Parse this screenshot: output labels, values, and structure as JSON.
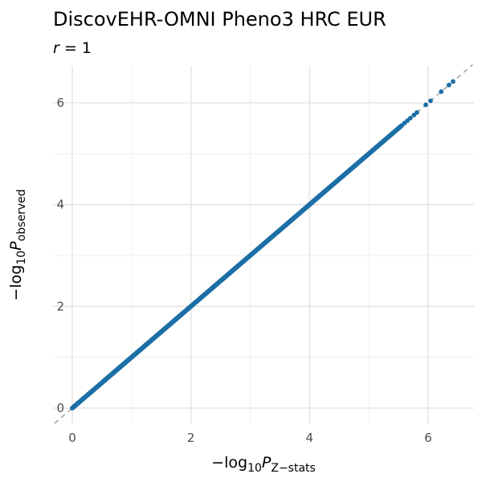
{
  "chart_data": {
    "type": "scatter",
    "title": "DiscovEHR-OMNI Pheno3 HRC EUR",
    "subtitle": {
      "italic": "r",
      "rest": " = 1"
    },
    "xlabel": {
      "prefix": "−log",
      "base": "10",
      "var": "P",
      "sub": "Z−stats"
    },
    "ylabel": {
      "prefix": "−log",
      "base": "10",
      "var": "P",
      "sub": "observed"
    },
    "xlim": [
      -0.3,
      6.75
    ],
    "ylim": [
      -0.3,
      6.75
    ],
    "x_ticks": [
      0,
      2,
      4,
      6
    ],
    "y_ticks": [
      0,
      2,
      4,
      6
    ],
    "x_tick_labels": [
      "0",
      "2",
      "4",
      "6"
    ],
    "y_tick_labels": [
      "0",
      "2",
      "4",
      "6"
    ],
    "grid": true,
    "reference_line": {
      "slope": 1,
      "intercept": 0,
      "style": "dashed"
    },
    "point_color": "#1b6fa6",
    "reference_color": "#a6a6a6",
    "dense_range": [
      0,
      5.55
    ],
    "series": [
      {
        "points": [
          [
            5.6,
            5.6
          ],
          [
            5.65,
            5.65
          ],
          [
            5.7,
            5.7
          ],
          [
            5.76,
            5.76
          ],
          [
            5.81,
            5.81
          ],
          [
            5.96,
            5.96
          ],
          [
            6.04,
            6.04
          ],
          [
            6.22,
            6.22
          ],
          [
            6.35,
            6.35
          ],
          [
            6.42,
            6.42
          ]
        ]
      }
    ]
  }
}
